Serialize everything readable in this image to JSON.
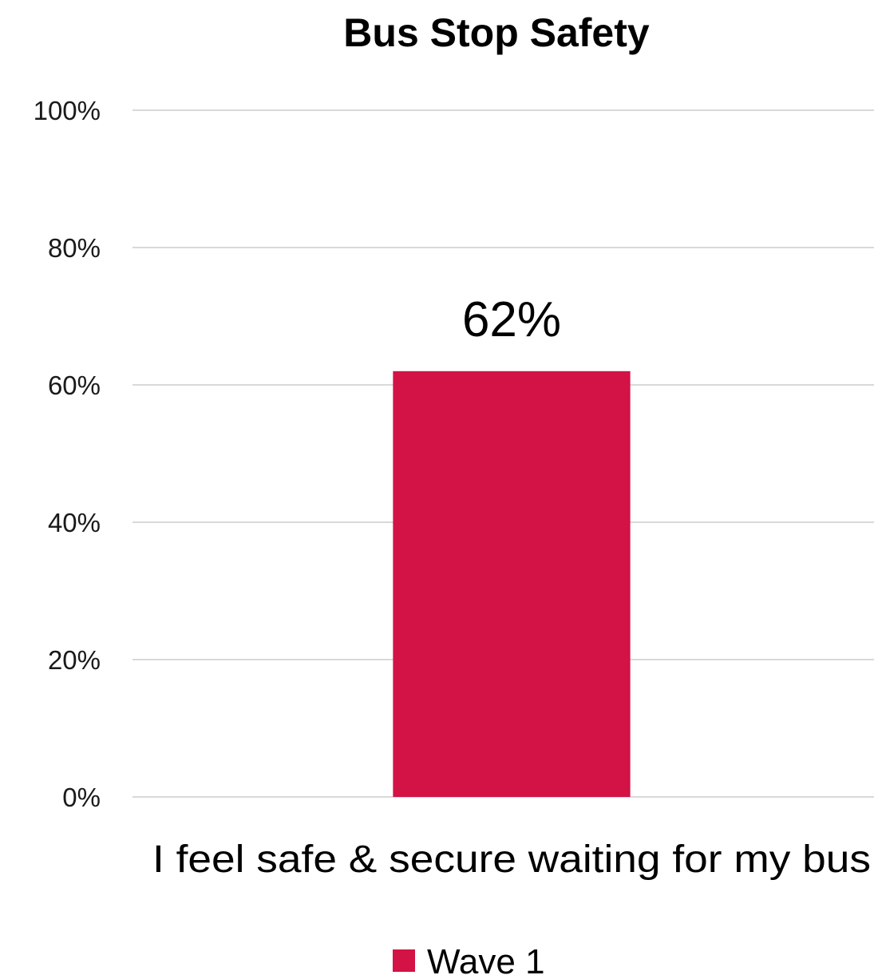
{
  "chart_data": {
    "type": "bar",
    "title": "Bus Stop Safety",
    "categories": [
      "I feel safe & secure waiting for my bus"
    ],
    "series": [
      {
        "name": "Wave 1",
        "values": [
          62
        ],
        "color": "#d31245"
      }
    ],
    "data_labels": [
      "62%"
    ],
    "y_ticks": [
      "0%",
      "20%",
      "40%",
      "60%",
      "80%",
      "100%"
    ],
    "ylim": [
      0,
      100
    ],
    "y_unit": "%",
    "grid": true,
    "legend_position": "bottom"
  }
}
